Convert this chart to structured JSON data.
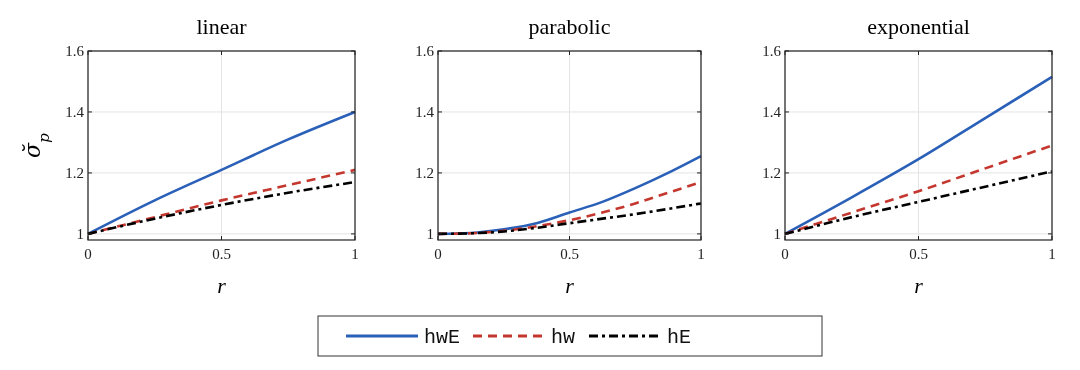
{
  "chart_data": [
    {
      "type": "line",
      "title": "linear",
      "xlabel": "r",
      "ylabel": "σ̆$_{p}$",
      "x": [
        0,
        0.25,
        0.5,
        0.75,
        1
      ],
      "xlim": [
        0,
        1
      ],
      "xticks": [
        0,
        0.5,
        1
      ],
      "ylim": [
        0.98,
        1.6
      ],
      "yticks": [
        1,
        1.2,
        1.4,
        1.6
      ],
      "grid": true,
      "legend": "bottom",
      "series": [
        {
          "name": "hwE",
          "color": "#2a60b8",
          "line_style": "solid",
          "values": [
            1,
            1.11,
            1.21,
            1.31,
            1.4
          ]
        },
        {
          "name": "hw",
          "color": "#c4372f",
          "line_style": "dashed",
          "values": [
            1,
            1.055,
            1.11,
            1.16,
            1.21
          ]
        },
        {
          "name": "hE",
          "color": "#000000",
          "line_style": "dashdot",
          "values": [
            1,
            1.05,
            1.095,
            1.135,
            1.17
          ]
        }
      ]
    },
    {
      "type": "line",
      "title": "parabolic",
      "xlabel": "r",
      "x": [
        0,
        0.125,
        0.25,
        0.375,
        0.5,
        0.625,
        0.75,
        0.875,
        1
      ],
      "xlim": [
        0,
        1
      ],
      "xticks": [
        0,
        0.5,
        1
      ],
      "ylim": [
        0.98,
        1.6
      ],
      "yticks": [
        1,
        1.2,
        1.4,
        1.6
      ],
      "grid": true,
      "series": [
        {
          "color": "#2a60b8",
          "line_style": "solid",
          "values": [
            1,
            1.003,
            1.015,
            1.035,
            1.07,
            1.105,
            1.15,
            1.2,
            1.255
          ]
        },
        {
          "color": "#c4372f",
          "line_style": "dashed",
          "values": [
            1,
            1.002,
            1.01,
            1.025,
            1.045,
            1.07,
            1.1,
            1.135,
            1.17
          ]
        },
        {
          "color": "#000000",
          "line_style": "dashdot",
          "values": [
            1,
            1.002,
            1.008,
            1.02,
            1.035,
            1.05,
            1.065,
            1.082,
            1.1
          ]
        }
      ]
    },
    {
      "type": "line",
      "title": "exponential",
      "xlabel": "r",
      "x": [
        0,
        0.25,
        0.5,
        0.75,
        1
      ],
      "xlim": [
        0,
        1
      ],
      "xticks": [
        0,
        0.5,
        1
      ],
      "ylim": [
        0.98,
        1.6
      ],
      "yticks": [
        1,
        1.2,
        1.4,
        1.6
      ],
      "grid": true,
      "series": [
        {
          "color": "#2a60b8",
          "line_style": "solid",
          "values": [
            1,
            1.12,
            1.245,
            1.38,
            1.515
          ]
        },
        {
          "color": "#c4372f",
          "line_style": "dashed",
          "values": [
            1,
            1.07,
            1.14,
            1.215,
            1.29
          ]
        },
        {
          "color": "#000000",
          "line_style": "dashdot",
          "values": [
            1,
            1.055,
            1.105,
            1.155,
            1.205
          ]
        }
      ]
    }
  ]
}
